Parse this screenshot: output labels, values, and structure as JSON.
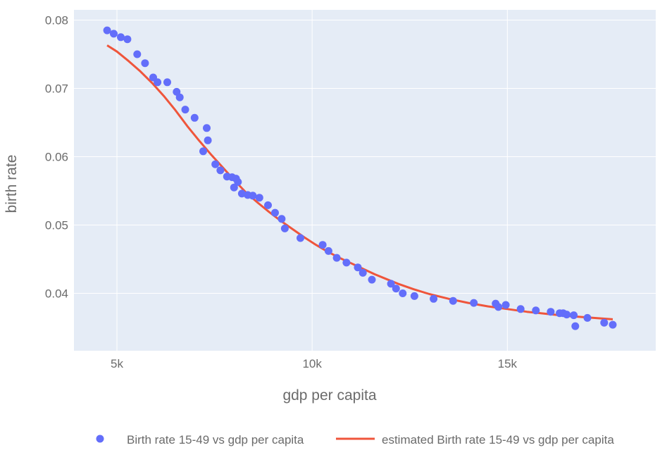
{
  "colors": {
    "plot_bg": "#e5ecf6",
    "grid": "#ffffff",
    "marker": "#636efa",
    "line": "#ef553b",
    "text": "#6b6b6b"
  },
  "chart_data": {
    "type": "scatter",
    "xlabel": "gdp per capita",
    "ylabel": "birth rate",
    "xlim": [
      3900,
      18800
    ],
    "ylim": [
      0.0316,
      0.0815
    ],
    "x_ticks": [
      5000,
      10000,
      15000
    ],
    "x_tick_labels": [
      "5k",
      "10k",
      "15k"
    ],
    "y_ticks": [
      0.04,
      0.05,
      0.06,
      0.07,
      0.08
    ],
    "y_tick_labels": [
      "0.04",
      "0.05",
      "0.06",
      "0.07",
      "0.08"
    ],
    "grid": true,
    "legend_position": "bottom",
    "series": [
      {
        "name": "Birth rate 15-49 vs gdp per capita",
        "mode": "markers",
        "x": [
          4750,
          4920,
          5100,
          5270,
          5520,
          5720,
          5930,
          6040,
          6290,
          6530,
          6610,
          6750,
          6990,
          7210,
          7300,
          7330,
          7520,
          7650,
          7820,
          7950,
          8000,
          8050,
          8100,
          8200,
          8350,
          8480,
          8650,
          8870,
          9050,
          9220,
          9300,
          9700,
          10270,
          10420,
          10630,
          10880,
          11170,
          11300,
          11530,
          12020,
          12150,
          12320,
          12620,
          13110,
          13610,
          14140,
          14700,
          14770,
          14960,
          15340,
          15730,
          16110,
          16340,
          16430,
          16520,
          16700,
          16740,
          17050,
          17480,
          17700
        ],
        "y": [
          0.0785,
          0.078,
          0.0775,
          0.0772,
          0.075,
          0.0737,
          0.0716,
          0.0709,
          0.0709,
          0.0695,
          0.0687,
          0.0669,
          0.0657,
          0.0608,
          0.0642,
          0.0624,
          0.0589,
          0.058,
          0.0571,
          0.057,
          0.0555,
          0.0568,
          0.0563,
          0.0546,
          0.0544,
          0.0543,
          0.054,
          0.0529,
          0.0518,
          0.0509,
          0.0495,
          0.0481,
          0.0471,
          0.0462,
          0.0452,
          0.0445,
          0.0438,
          0.043,
          0.042,
          0.0414,
          0.0407,
          0.04,
          0.0396,
          0.0392,
          0.0389,
          0.0386,
          0.0385,
          0.038,
          0.0383,
          0.0377,
          0.0375,
          0.0373,
          0.0371,
          0.0371,
          0.0369,
          0.0368,
          0.0352,
          0.0364,
          0.0357,
          0.0354
        ]
      },
      {
        "name": "estimated Birth rate 15-49 vs gdp per capita",
        "mode": "lines",
        "x": [
          4750,
          5000,
          5300,
          5600,
          5900,
          6200,
          6500,
          6800,
          7100,
          7400,
          7700,
          8000,
          8300,
          8600,
          8900,
          9200,
          9500,
          9800,
          10100,
          10400,
          10700,
          11000,
          11300,
          11600,
          11900,
          12200,
          12600,
          13000,
          13500,
          14000,
          14500,
          15000,
          15500,
          16000,
          16500,
          17000,
          17700
        ],
        "y": [
          0.0763,
          0.0754,
          0.074,
          0.0725,
          0.0708,
          0.0689,
          0.0668,
          0.0645,
          0.0624,
          0.0604,
          0.0585,
          0.0566,
          0.0548,
          0.0533,
          0.0519,
          0.0506,
          0.0494,
          0.0482,
          0.0471,
          0.0461,
          0.0452,
          0.0444,
          0.0436,
          0.0428,
          0.0421,
          0.0414,
          0.0406,
          0.0399,
          0.0392,
          0.0386,
          0.0381,
          0.0377,
          0.0373,
          0.037,
          0.0367,
          0.0365,
          0.0362
        ]
      }
    ]
  }
}
